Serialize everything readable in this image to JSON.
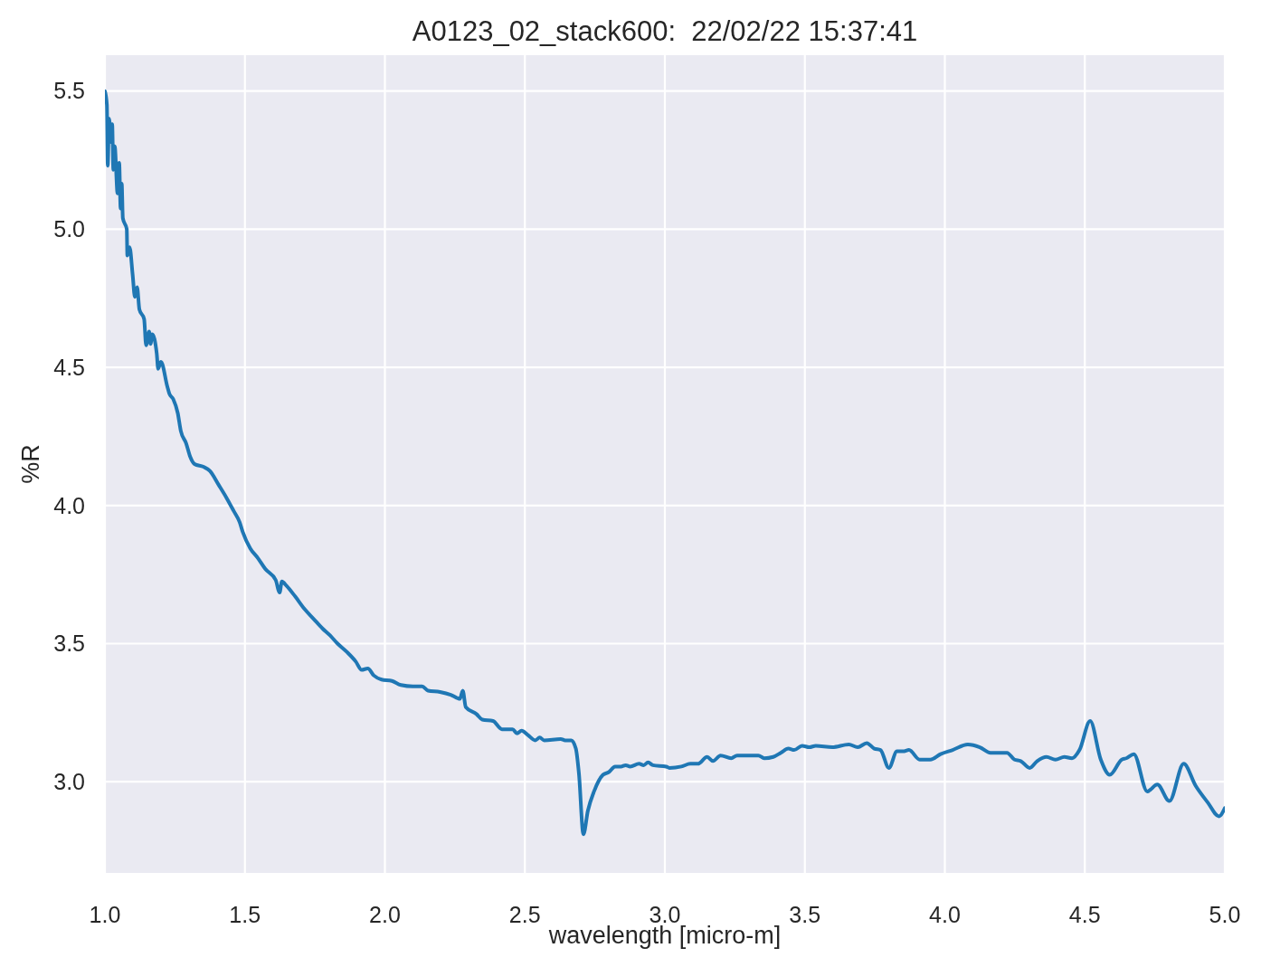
{
  "chart_data": {
    "type": "line",
    "title": "A0123_02_stack600:  22/02/22 15:37:41",
    "xlabel": "wavelength [micro-m]",
    "ylabel": "%R",
    "xlim": [
      1.0,
      5.0
    ],
    "ylim": [
      2.67,
      5.63
    ],
    "xticks": [
      {
        "value": 1,
        "label": "1.0"
      },
      {
        "value": 1.5,
        "label": "1.5"
      },
      {
        "value": 2,
        "label": "2.0"
      },
      {
        "value": 2.5,
        "label": "2.5"
      },
      {
        "value": 3,
        "label": "3.0"
      },
      {
        "value": 3.5,
        "label": "3.5"
      },
      {
        "value": 4,
        "label": "4.0"
      },
      {
        "value": 4.5,
        "label": "4.5"
      },
      {
        "value": 5,
        "label": "5.0"
      }
    ],
    "yticks": [
      {
        "value": 3,
        "label": "3.0"
      },
      {
        "value": 3.5,
        "label": "3.5"
      },
      {
        "value": 4,
        "label": "4.0"
      },
      {
        "value": 4.5,
        "label": "4.5"
      },
      {
        "value": 5,
        "label": "5.0"
      },
      {
        "value": 5.5,
        "label": "5.5"
      }
    ],
    "grid": true,
    "line_style": "solid",
    "x": [
      1.0,
      1.007,
      1.01,
      1.015,
      1.022,
      1.026,
      1.03,
      1.035,
      1.045,
      1.051,
      1.056,
      1.06,
      1.064,
      1.078,
      1.08,
      1.088,
      1.099,
      1.107,
      1.115,
      1.123,
      1.14,
      1.147,
      1.158,
      1.163,
      1.169,
      1.185,
      1.19,
      1.2,
      1.223,
      1.23,
      1.244,
      1.26,
      1.271,
      1.29,
      1.305,
      1.32,
      1.352,
      1.375,
      1.406,
      1.433,
      1.46,
      1.481,
      1.492,
      1.519,
      1.546,
      1.573,
      1.61,
      1.624,
      1.632,
      1.648,
      1.68,
      1.713,
      1.745,
      1.777,
      1.804,
      1.831,
      1.864,
      1.896,
      1.917,
      1.939,
      1.96,
      1.988,
      2.025,
      2.057,
      2.1,
      2.133,
      2.154,
      2.197,
      2.235,
      2.268,
      2.278,
      2.289,
      2.327,
      2.348,
      2.386,
      2.418,
      2.456,
      2.472,
      2.488,
      2.51,
      2.537,
      2.553,
      2.569,
      2.628,
      2.644,
      2.666,
      2.682,
      2.693,
      2.709,
      2.725,
      2.747,
      2.779,
      2.8,
      2.822,
      2.843,
      2.86,
      2.876,
      2.908,
      2.924,
      2.94,
      2.957,
      3.005,
      3.016,
      3.059,
      3.091,
      3.118,
      3.151,
      3.172,
      3.199,
      3.237,
      3.258,
      3.334,
      3.355,
      3.387,
      3.414,
      3.441,
      3.462,
      3.49,
      3.516,
      3.539,
      3.598,
      3.657,
      3.689,
      3.721,
      3.748,
      3.77,
      3.8,
      3.829,
      3.851,
      3.872,
      3.91,
      3.948,
      3.985,
      4.028,
      4.082,
      4.125,
      4.163,
      4.222,
      4.249,
      4.271,
      4.303,
      4.33,
      4.363,
      4.395,
      4.427,
      4.454,
      4.481,
      4.519,
      4.557,
      4.589,
      4.632,
      4.648,
      4.675,
      4.723,
      4.759,
      4.802,
      4.853,
      4.896,
      4.939,
      4.979,
      5.0
    ],
    "series": [
      {
        "color": "#1f77b4",
        "values": [
          5.5,
          5.45,
          5.23,
          5.4,
          5.315,
          5.38,
          5.215,
          5.3,
          5.13,
          5.24,
          5.075,
          5.165,
          5.04,
          5.0,
          4.905,
          4.935,
          4.835,
          4.755,
          4.79,
          4.71,
          4.675,
          4.58,
          4.63,
          4.585,
          4.62,
          4.55,
          4.495,
          4.52,
          4.43,
          4.405,
          4.385,
          4.335,
          4.27,
          4.225,
          4.175,
          4.15,
          4.14,
          4.125,
          4.075,
          4.03,
          3.98,
          3.94,
          3.905,
          3.845,
          3.81,
          3.77,
          3.73,
          3.685,
          3.725,
          3.71,
          3.67,
          3.625,
          3.59,
          3.555,
          3.53,
          3.5,
          3.47,
          3.435,
          3.405,
          3.41,
          3.385,
          3.37,
          3.365,
          3.35,
          3.345,
          3.345,
          3.33,
          3.325,
          3.315,
          3.3,
          3.33,
          3.27,
          3.245,
          3.225,
          3.22,
          3.19,
          3.19,
          3.175,
          3.185,
          3.17,
          3.15,
          3.16,
          3.15,
          3.155,
          3.15,
          3.15,
          3.12,
          3.03,
          2.81,
          2.895,
          2.965,
          3.025,
          3.035,
          3.055,
          3.055,
          3.06,
          3.055,
          3.065,
          3.06,
          3.07,
          3.06,
          3.055,
          3.05,
          3.055,
          3.065,
          3.065,
          3.09,
          3.075,
          3.095,
          3.085,
          3.095,
          3.095,
          3.085,
          3.09,
          3.105,
          3.12,
          3.115,
          3.13,
          3.125,
          3.13,
          3.125,
          3.135,
          3.125,
          3.14,
          3.12,
          3.115,
          3.05,
          3.11,
          3.11,
          3.115,
          3.08,
          3.08,
          3.1,
          3.115,
          3.135,
          3.125,
          3.105,
          3.105,
          3.08,
          3.075,
          3.05,
          3.075,
          3.09,
          3.08,
          3.09,
          3.085,
          3.115,
          3.22,
          3.08,
          3.025,
          3.08,
          3.085,
          3.1,
          2.965,
          2.99,
          2.93,
          3.065,
          2.985,
          2.925,
          2.875,
          2.905
        ]
      }
    ]
  }
}
